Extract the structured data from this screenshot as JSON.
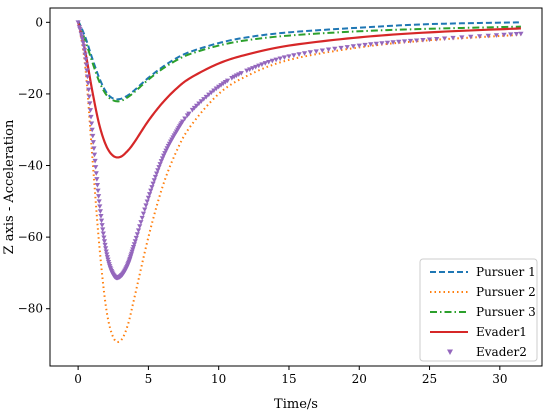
{
  "chart_data": {
    "type": "line",
    "title": "",
    "xlabel": "Time/s",
    "ylabel": "Z axis - Acceleration",
    "xlim": [
      -2,
      33
    ],
    "ylim": [
      -96,
      4
    ],
    "xticks": [
      0,
      5,
      10,
      15,
      20,
      25,
      30
    ],
    "yticks": [
      0,
      -20,
      -40,
      -60,
      -80
    ],
    "xtick_labels": [
      "0",
      "5",
      "10",
      "15",
      "20",
      "25",
      "30"
    ],
    "ytick_labels": [
      "0",
      "−20",
      "−40",
      "−60",
      "−80"
    ],
    "grid": false,
    "legend_position": "lower-right",
    "series": [
      {
        "name": "Pursuer 1",
        "color": "#1f77b4",
        "style": "dashed",
        "x": [
          0,
          0.5,
          1,
          1.5,
          2,
          2.5,
          3,
          3.5,
          4,
          5,
          6,
          7,
          8,
          10,
          12,
          15,
          20,
          25,
          31.5
        ],
        "y": [
          0.5,
          -4,
          -10,
          -15.5,
          -19.5,
          -21.3,
          -21.4,
          -20.5,
          -19,
          -15.5,
          -12.5,
          -10,
          -8.2,
          -5.8,
          -4.2,
          -2.8,
          -1.5,
          -0.5,
          0
        ]
      },
      {
        "name": "Pursuer 2",
        "color": "#ff7f0e",
        "style": "dotted",
        "x": [
          0,
          0.5,
          1,
          1.5,
          2,
          2.5,
          3,
          3.5,
          4,
          5,
          6,
          7,
          8,
          10,
          12,
          15,
          20,
          25,
          31.5
        ],
        "y": [
          0,
          -12,
          -37,
          -62,
          -80,
          -88,
          -89,
          -85,
          -77,
          -60,
          -46,
          -36,
          -29,
          -20,
          -15,
          -10.5,
          -7,
          -5,
          -3.5
        ]
      },
      {
        "name": "Pursuer 3",
        "color": "#2ca02c",
        "style": "dashdot",
        "x": [
          0,
          0.5,
          1,
          1.5,
          2,
          2.5,
          3,
          3.5,
          4,
          5,
          6,
          7,
          8,
          10,
          12,
          15,
          20,
          25,
          31.5
        ],
        "y": [
          0.2,
          -5,
          -11,
          -16.5,
          -20.2,
          -21.8,
          -22,
          -21,
          -19.5,
          -16,
          -13,
          -10.6,
          -8.8,
          -6.5,
          -5,
          -3.7,
          -2.5,
          -1.8,
          -1.2
        ]
      },
      {
        "name": "Evader1",
        "color": "#d62728",
        "style": "solid",
        "x": [
          0,
          0.5,
          1,
          1.5,
          2,
          2.5,
          3,
          3.5,
          4,
          5,
          6,
          7,
          8,
          10,
          12,
          15,
          20,
          25,
          31.5
        ],
        "y": [
          0,
          -8,
          -19,
          -28.5,
          -34.5,
          -37.3,
          -37.6,
          -36,
          -33.5,
          -27.5,
          -22.5,
          -18.5,
          -15.5,
          -11.5,
          -9,
          -6.5,
          -4.2,
          -2.8,
          -1.7
        ]
      },
      {
        "name": "Evader2",
        "color": "#9467bd",
        "style": "triangles",
        "x": [
          0,
          0.5,
          1,
          1.5,
          2,
          2.5,
          3,
          3.5,
          4,
          5,
          6,
          7,
          8,
          10,
          12,
          15,
          20,
          25,
          31.5
        ],
        "y": [
          0,
          -9,
          -30,
          -50,
          -64,
          -70.5,
          -71,
          -68,
          -62,
          -49,
          -38,
          -30.5,
          -25,
          -18,
          -13.5,
          -9.5,
          -6.5,
          -4.8,
          -3.2
        ]
      }
    ]
  }
}
